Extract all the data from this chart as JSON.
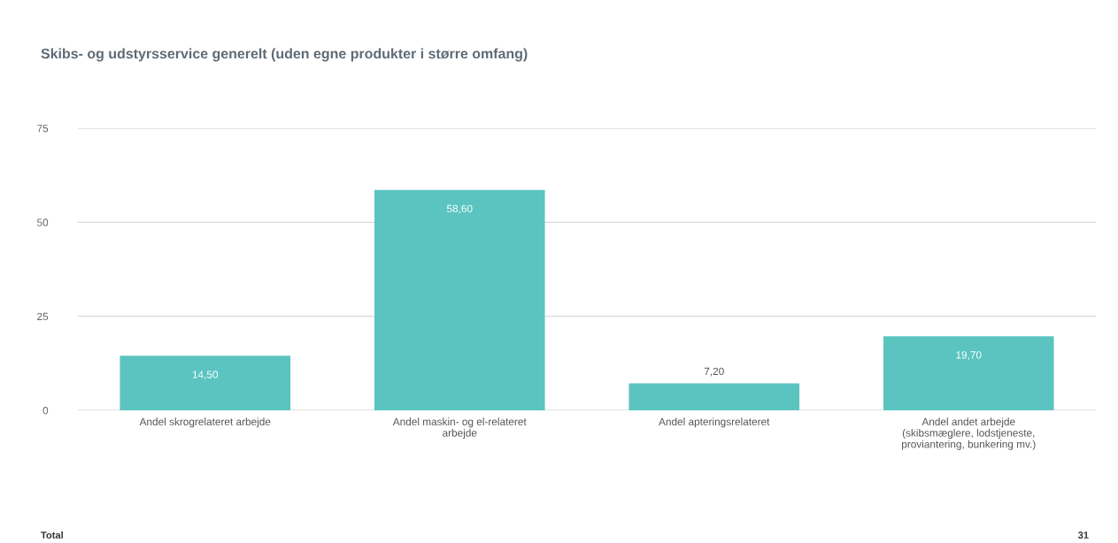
{
  "chart_data": {
    "type": "bar",
    "title": "Skibs- og udstyrsservice generelt (uden egne produkter i større omfang)",
    "categories": [
      "Andel skrogrelateret arbejde",
      "Andel maskin- og el-relateret arbejde",
      "Andel apteringsrelateret",
      "Andel andet arbejde (skibsmæglere, lodstjeneste, proviantering, bunkering mv.)"
    ],
    "values": [
      14.5,
      58.6,
      7.2,
      19.7
    ],
    "value_labels": [
      "14,50",
      "58,60",
      "7,20",
      "19,70"
    ],
    "color": "#5bc4c1",
    "ylim": [
      0,
      75
    ],
    "yticks": [
      0,
      25,
      50,
      75
    ],
    "grid": "y",
    "legend": false,
    "annotations": [
      "Total",
      "31"
    ]
  }
}
